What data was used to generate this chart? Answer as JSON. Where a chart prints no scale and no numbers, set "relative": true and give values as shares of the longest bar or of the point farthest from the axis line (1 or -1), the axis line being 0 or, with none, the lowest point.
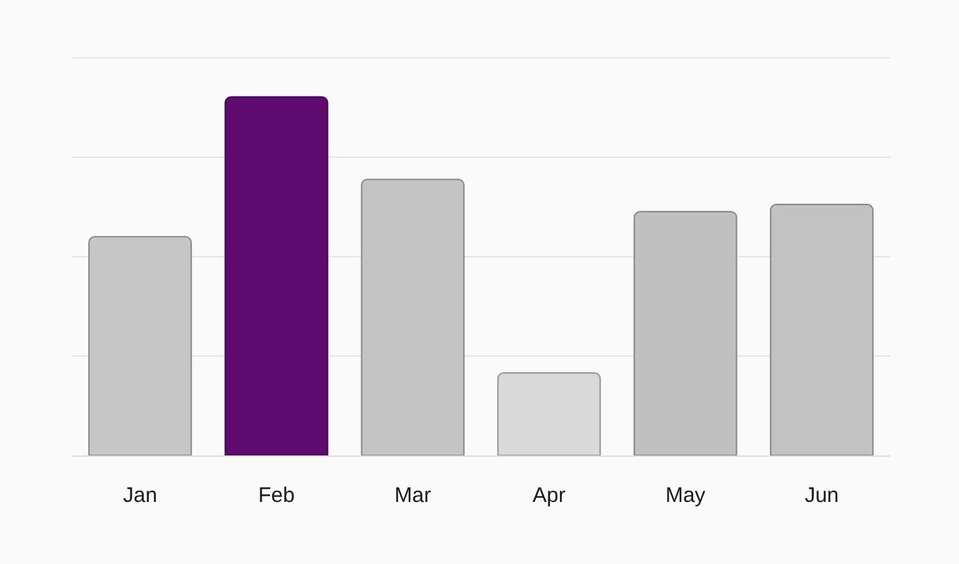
{
  "chart_data": {
    "type": "bar",
    "relative": true,
    "grid": "y",
    "categories": [
      "Jan",
      "Feb",
      "Mar",
      "Apr",
      "May",
      "Jun"
    ],
    "values": [
      0.61,
      1,
      0.77,
      0.23,
      0.68,
      0.7
    ],
    "colors": [
      "#c6c6c6",
      "#5e0a6e",
      "#c4c4c4",
      "#d9d9d9",
      "#c0c0c0",
      "#c2c2c2"
    ]
  }
}
